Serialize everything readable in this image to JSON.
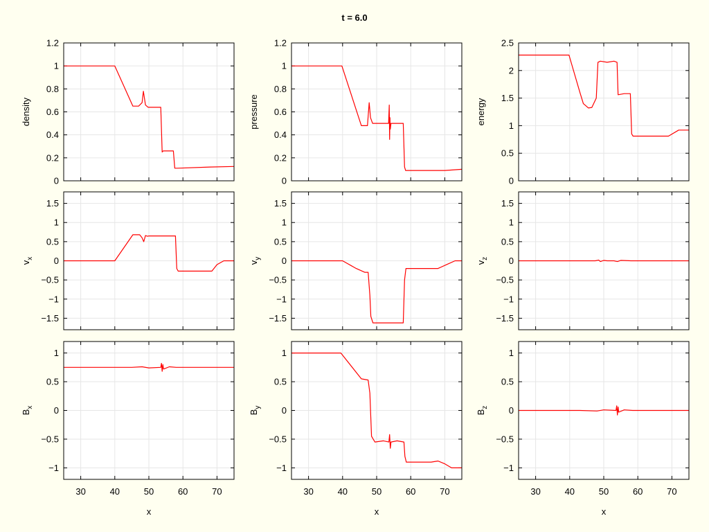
{
  "figure": {
    "title": "t = 6.0",
    "background": "#fffff0",
    "line_color": "#ff0000",
    "grid_color": "#e6e6e6"
  },
  "chart_data": [
    {
      "type": "line",
      "id": "density",
      "ylabel": "density",
      "xlabel": "",
      "xlim": [
        25,
        75
      ],
      "ylim": [
        0,
        1.2
      ],
      "xticks": [
        30,
        40,
        50,
        60,
        70
      ],
      "yticks": [
        0,
        0.2,
        0.4,
        0.6,
        0.8,
        1,
        1.2
      ],
      "ytick_labels": [
        "0",
        "0.2",
        "0.4",
        "0.6",
        "0.8",
        "1",
        "1.2"
      ],
      "show_xtick_labels": false,
      "grid": true,
      "series": [
        {
          "x": [
            25,
            40,
            45.3,
            47,
            48,
            48.4,
            49,
            49.8,
            50,
            53.5,
            53.9,
            54.2,
            57.2,
            57.6,
            58.4,
            68,
            75
          ],
          "y": [
            1,
            1,
            0.65,
            0.65,
            0.68,
            0.78,
            0.66,
            0.64,
            0.64,
            0.64,
            0.25,
            0.26,
            0.26,
            0.11,
            0.11,
            0.12,
            0.125
          ]
        }
      ]
    },
    {
      "type": "line",
      "id": "pressure",
      "ylabel": "pressure",
      "xlabel": "",
      "xlim": [
        25,
        75
      ],
      "ylim": [
        0,
        1.2
      ],
      "xticks": [
        30,
        40,
        50,
        60,
        70
      ],
      "yticks": [
        0,
        0.2,
        0.4,
        0.6,
        0.8,
        1,
        1.2
      ],
      "ytick_labels": [
        "0",
        "0.2",
        "0.4",
        "0.6",
        "0.8",
        "1",
        "1.2"
      ],
      "show_xtick_labels": false,
      "grid": true,
      "series": [
        {
          "x": [
            25,
            39.8,
            45.5,
            47.3,
            47.8,
            48.2,
            48.8,
            50,
            53.5,
            53.7,
            53.8,
            53.9,
            54.0,
            54.2,
            57.8,
            58.2,
            58.5,
            70,
            75
          ],
          "y": [
            1,
            1,
            0.48,
            0.48,
            0.68,
            0.55,
            0.5,
            0.5,
            0.5,
            0.66,
            0.36,
            0.55,
            0.45,
            0.5,
            0.5,
            0.12,
            0.09,
            0.09,
            0.1
          ]
        }
      ]
    },
    {
      "type": "line",
      "id": "energy",
      "ylabel": "energy",
      "xlabel": "",
      "xlim": [
        25,
        75
      ],
      "ylim": [
        0,
        2.5
      ],
      "xticks": [
        30,
        40,
        50,
        60,
        70
      ],
      "yticks": [
        0,
        0.5,
        1,
        1.5,
        2,
        2.5
      ],
      "ytick_labels": [
        "0",
        "0.5",
        "1",
        "1.5",
        "2",
        "2.5"
      ],
      "show_xtick_labels": false,
      "grid": true,
      "series": [
        {
          "x": [
            25,
            39.8,
            43,
            44,
            45.5,
            46.5,
            47.8,
            48.3,
            49,
            51,
            53,
            53.9,
            54.2,
            56,
            57.8,
            58.2,
            58.6,
            69,
            72,
            75
          ],
          "y": [
            2.28,
            2.28,
            1.6,
            1.4,
            1.32,
            1.33,
            1.5,
            2.15,
            2.17,
            2.15,
            2.17,
            2.15,
            1.56,
            1.58,
            1.58,
            0.85,
            0.81,
            0.81,
            0.92,
            0.92
          ]
        }
      ]
    },
    {
      "type": "line",
      "id": "vx",
      "ylabel": "v",
      "ylabel_sub": "x",
      "xlabel": "",
      "xlim": [
        25,
        75
      ],
      "ylim": [
        -1.8,
        1.8
      ],
      "xticks": [
        30,
        40,
        50,
        60,
        70
      ],
      "yticks": [
        -1.5,
        -1,
        -0.5,
        0,
        0.5,
        1,
        1.5
      ],
      "ytick_labels": [
        "−1.5",
        "−1",
        "−0.5",
        "0",
        "0.5",
        "1",
        "1.5"
      ],
      "show_xtick_labels": false,
      "grid": true,
      "series": [
        {
          "x": [
            25,
            40,
            45.3,
            47.3,
            48,
            48.5,
            49,
            49.6,
            50,
            55,
            57.8,
            58.2,
            58.6,
            68.5,
            70,
            72,
            75
          ],
          "y": [
            0,
            0,
            0.68,
            0.68,
            0.6,
            0.5,
            0.66,
            0.64,
            0.65,
            0.65,
            0.65,
            -0.2,
            -0.27,
            -0.27,
            -0.1,
            0,
            0
          ]
        }
      ]
    },
    {
      "type": "line",
      "id": "vy",
      "ylabel": "v",
      "ylabel_sub": "y",
      "xlabel": "",
      "xlim": [
        25,
        75
      ],
      "ylim": [
        -1.8,
        1.8
      ],
      "xticks": [
        30,
        40,
        50,
        60,
        70
      ],
      "yticks": [
        -1.5,
        -1,
        -0.5,
        0,
        0.5,
        1,
        1.5
      ],
      "ytick_labels": [
        "−1.5",
        "−1",
        "−0.5",
        "0",
        "0.5",
        "1",
        "1.5"
      ],
      "show_xtick_labels": false,
      "grid": true,
      "series": [
        {
          "x": [
            25,
            40,
            44,
            46.5,
            47.5,
            48.0,
            48.3,
            48.9,
            50,
            54,
            57.8,
            58.2,
            58.6,
            68,
            71,
            73,
            75
          ],
          "y": [
            0,
            0,
            -0.2,
            -0.3,
            -0.3,
            -0.9,
            -1.45,
            -1.62,
            -1.62,
            -1.62,
            -1.62,
            -0.5,
            -0.2,
            -0.2,
            -0.08,
            0,
            0
          ]
        }
      ]
    },
    {
      "type": "line",
      "id": "vz",
      "ylabel": "v",
      "ylabel_sub": "z",
      "xlabel": "",
      "xlim": [
        25,
        75
      ],
      "ylim": [
        -1.8,
        1.8
      ],
      "xticks": [
        30,
        40,
        50,
        60,
        70
      ],
      "yticks": [
        -1.5,
        -1,
        -0.5,
        0,
        0.5,
        1,
        1.5
      ],
      "ytick_labels": [
        "−1.5",
        "−1",
        "−0.5",
        "0",
        "0.5",
        "1",
        "1.5"
      ],
      "show_xtick_labels": false,
      "grid": true,
      "series": [
        {
          "x": [
            25,
            47.5,
            48.5,
            49,
            50,
            51,
            53,
            54,
            55,
            58,
            75
          ],
          "y": [
            0,
            0,
            0.02,
            -0.02,
            0.01,
            0,
            0,
            -0.02,
            0.01,
            0,
            0
          ]
        }
      ]
    },
    {
      "type": "line",
      "id": "Bx",
      "ylabel": "B",
      "ylabel_sub": "x",
      "xlabel": "x",
      "xlim": [
        25,
        75
      ],
      "ylim": [
        -1.2,
        1.2
      ],
      "xticks": [
        30,
        40,
        50,
        60,
        70
      ],
      "yticks": [
        -1,
        -0.5,
        0,
        0.5,
        1
      ],
      "ytick_labels": [
        "−1",
        "−0.5",
        "0",
        "0.5",
        "1"
      ],
      "show_xtick_labels": true,
      "grid": true,
      "series": [
        {
          "x": [
            25,
            45,
            48,
            50,
            53.5,
            53.7,
            53.9,
            54.1,
            54.3,
            56,
            58,
            75
          ],
          "y": [
            0.75,
            0.75,
            0.76,
            0.74,
            0.75,
            0.82,
            0.68,
            0.8,
            0.72,
            0.76,
            0.75,
            0.75
          ]
        }
      ]
    },
    {
      "type": "line",
      "id": "By",
      "ylabel": "B",
      "ylabel_sub": "y",
      "xlabel": "x",
      "xlim": [
        25,
        75
      ],
      "ylim": [
        -1.2,
        1.2
      ],
      "xticks": [
        30,
        40,
        50,
        60,
        70
      ],
      "yticks": [
        -1,
        -0.5,
        0,
        0.5,
        1
      ],
      "ytick_labels": [
        "−1",
        "−0.5",
        "0",
        "0.5",
        "1"
      ],
      "show_xtick_labels": true,
      "grid": true,
      "series": [
        {
          "x": [
            25,
            39.5,
            45.5,
            47.5,
            48,
            48.5,
            49.5,
            52,
            53.6,
            53.8,
            54.0,
            54.2,
            56,
            58,
            58.3,
            58.7,
            66,
            68,
            70,
            72,
            75
          ],
          "y": [
            1,
            1,
            0.55,
            0.53,
            0.3,
            -0.45,
            -0.55,
            -0.53,
            -0.55,
            -0.42,
            -0.66,
            -0.55,
            -0.53,
            -0.55,
            -0.8,
            -0.9,
            -0.9,
            -0.88,
            -0.93,
            -1,
            -1
          ]
        }
      ]
    },
    {
      "type": "line",
      "id": "Bz",
      "ylabel": "B",
      "ylabel_sub": "z",
      "xlabel": "x",
      "xlim": [
        25,
        75
      ],
      "ylim": [
        -1.2,
        1.2
      ],
      "xticks": [
        30,
        40,
        50,
        60,
        70
      ],
      "yticks": [
        -1,
        -0.5,
        0,
        0.5,
        1
      ],
      "ytick_labels": [
        "−1",
        "−0.5",
        "0",
        "0.5",
        "1"
      ],
      "show_xtick_labels": true,
      "grid": true,
      "series": [
        {
          "x": [
            25,
            43,
            48,
            50,
            53.6,
            53.8,
            54.0,
            54.2,
            54.4,
            56,
            58.5,
            75
          ],
          "y": [
            0,
            0,
            -0.01,
            0.01,
            0,
            0.08,
            -0.08,
            0.06,
            -0.03,
            0.01,
            0,
            0
          ]
        }
      ]
    }
  ]
}
